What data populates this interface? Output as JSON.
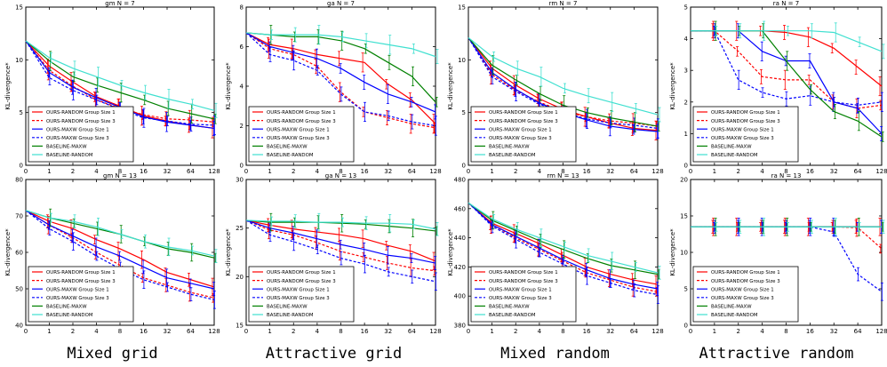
{
  "figure": {
    "captions": [
      "Mixed grid",
      "Attractive grid",
      "Mixed random",
      "Attractive random"
    ]
  },
  "chart_data": [
    {
      "type": "line",
      "title": "gm N = 7",
      "xlabel": "",
      "ylabel": "KL-divergence*",
      "x": [
        0,
        1,
        2,
        4,
        8,
        16,
        32,
        64,
        128
      ],
      "ylim": [
        0,
        15
      ],
      "yticks": [
        0,
        5,
        10,
        15
      ],
      "legend": "lower-left",
      "series": [
        {
          "name": "OURS-RANDOM Group Size 1",
          "color": "#ff0000",
          "dash": false,
          "values": [
            11.8,
            9.4,
            7.9,
            6.5,
            5.6,
            4.7,
            4.2,
            3.8,
            3.5
          ]
        },
        {
          "name": "OURS-RANDOM Group Size 3",
          "color": "#ff0000",
          "dash": true,
          "values": [
            11.8,
            9.0,
            7.5,
            6.2,
            5.4,
            4.8,
            4.4,
            4.3,
            4.1
          ]
        },
        {
          "name": "OURS-MAXW Group Size 1",
          "color": "#0000ff",
          "dash": false,
          "values": [
            11.8,
            8.8,
            7.4,
            6.4,
            5.5,
            4.6,
            4.1,
            3.8,
            3.5
          ]
        },
        {
          "name": "OURS-MAXW Group Size 3",
          "color": "#0000ff",
          "dash": true,
          "values": [
            11.8,
            8.3,
            7.1,
            6.2,
            5.3,
            4.5,
            4.2,
            3.9,
            3.8
          ]
        },
        {
          "name": "BASELINE-MAXW",
          "color": "#008000",
          "dash": false,
          "values": [
            11.8,
            9.9,
            8.4,
            7.6,
            6.9,
            6.2,
            5.4,
            4.9,
            4.4
          ]
        },
        {
          "name": "BASELINE-RANDOM",
          "color": "#40e0d0",
          "dash": false,
          "values": [
            11.8,
            10.2,
            9.2,
            8.4,
            7.6,
            6.9,
            6.3,
            5.8,
            5.2
          ]
        }
      ]
    },
    {
      "type": "line",
      "title": "ga N = 7",
      "xlabel": "",
      "ylabel": "KL-divergence*",
      "x": [
        0,
        1,
        2,
        4,
        8,
        16,
        32,
        64,
        128
      ],
      "ylim": [
        0,
        8
      ],
      "yticks": [
        0,
        2,
        4,
        6,
        8
      ],
      "legend": "lower-left",
      "series": [
        {
          "name": "OURS-RANDOM Group Size 1",
          "color": "#ff0000",
          "dash": false,
          "values": [
            6.7,
            6.1,
            5.9,
            5.6,
            5.4,
            5.2,
            4.1,
            3.3,
            2.1
          ]
        },
        {
          "name": "OURS-RANDOM Group Size 3",
          "color": "#ff0000",
          "dash": true,
          "values": [
            6.7,
            5.9,
            5.6,
            5.0,
            3.7,
            2.7,
            2.4,
            2.1,
            1.9
          ]
        },
        {
          "name": "OURS-MAXW Group Size 1",
          "color": "#0000ff",
          "dash": false,
          "values": [
            6.7,
            6.0,
            5.7,
            5.4,
            4.9,
            4.2,
            3.6,
            3.2,
            2.7
          ]
        },
        {
          "name": "OURS-MAXW Group Size 3",
          "color": "#0000ff",
          "dash": true,
          "values": [
            6.7,
            5.6,
            5.3,
            4.8,
            3.6,
            2.7,
            2.5,
            2.2,
            2.0
          ]
        },
        {
          "name": "BASELINE-MAXW",
          "color": "#008000",
          "dash": false,
          "values": [
            6.7,
            6.6,
            6.5,
            6.5,
            6.3,
            5.9,
            5.2,
            4.5,
            3.2
          ]
        },
        {
          "name": "BASELINE-RANDOM",
          "color": "#40e0d0",
          "dash": false,
          "values": [
            6.7,
            6.6,
            6.6,
            6.6,
            6.5,
            6.3,
            6.1,
            5.9,
            5.5
          ]
        }
      ]
    },
    {
      "type": "line",
      "title": "rm N = 7",
      "xlabel": "",
      "ylabel": "KL-divergence*",
      "x": [
        0,
        1,
        2,
        4,
        8,
        16,
        32,
        64,
        128
      ],
      "ylim": [
        0,
        15
      ],
      "yticks": [
        0,
        5,
        10,
        15
      ],
      "legend": "lower-left",
      "series": [
        {
          "name": "OURS-RANDOM Group Size 1",
          "color": "#ff0000",
          "dash": false,
          "values": [
            12.1,
            9.2,
            7.6,
            6.3,
            5.3,
            4.6,
            4.0,
            3.5,
            3.3
          ]
        },
        {
          "name": "OURS-RANDOM Group Size 3",
          "color": "#ff0000",
          "dash": true,
          "values": [
            12.1,
            8.6,
            7.1,
            6.0,
            5.1,
            4.6,
            4.2,
            4.0,
            3.7
          ]
        },
        {
          "name": "OURS-MAXW Group Size 1",
          "color": "#0000ff",
          "dash": false,
          "values": [
            12.1,
            8.8,
            7.2,
            5.9,
            5.0,
            4.3,
            3.7,
            3.4,
            3.2
          ]
        },
        {
          "name": "OURS-MAXW Group Size 3",
          "color": "#0000ff",
          "dash": true,
          "values": [
            12.1,
            8.4,
            7.0,
            5.8,
            5.0,
            4.4,
            4.0,
            3.8,
            3.5
          ]
        },
        {
          "name": "BASELINE-MAXW",
          "color": "#008000",
          "dash": false,
          "values": [
            12.1,
            9.5,
            8.1,
            6.8,
            5.7,
            5.0,
            4.5,
            4.1,
            3.7
          ]
        },
        {
          "name": "BASELINE-RANDOM",
          "color": "#40e0d0",
          "dash": false,
          "values": [
            12.1,
            10.3,
            9.2,
            8.4,
            7.3,
            6.6,
            6.0,
            5.4,
            4.8
          ]
        }
      ]
    },
    {
      "type": "line",
      "title": "ra N = 7",
      "xlabel": "",
      "ylabel": "KL-divergence*",
      "x": [
        0,
        1,
        2,
        4,
        8,
        16,
        32,
        64,
        128
      ],
      "ylim": [
        0,
        5
      ],
      "yticks": [
        0,
        1,
        2,
        3,
        4,
        5
      ],
      "legend": "lower-left",
      "series": [
        {
          "name": "OURS-RANDOM Group Size 1",
          "color": "#ff0000",
          "dash": false,
          "values": [
            4.25,
            4.25,
            4.25,
            4.25,
            4.2,
            4.05,
            3.7,
            3.1,
            2.5
          ]
        },
        {
          "name": "OURS-RANDOM Group Size 3",
          "color": "#ff0000",
          "dash": true,
          "values": [
            4.25,
            4.25,
            3.6,
            2.8,
            2.7,
            2.7,
            2.0,
            1.8,
            1.9
          ]
        },
        {
          "name": "OURS-MAXW Group Size 1",
          "color": "#0000ff",
          "dash": false,
          "values": [
            4.25,
            4.25,
            4.25,
            3.6,
            3.3,
            3.3,
            2.0,
            1.8,
            1.0
          ]
        },
        {
          "name": "OURS-MAXW Group Size 3",
          "color": "#0000ff",
          "dash": true,
          "values": [
            4.25,
            4.25,
            2.7,
            2.3,
            2.1,
            2.2,
            2.0,
            1.9,
            2.0
          ]
        },
        {
          "name": "BASELINE-MAXW",
          "color": "#008000",
          "dash": false,
          "values": [
            4.25,
            4.25,
            4.25,
            4.25,
            3.3,
            2.4,
            1.7,
            1.4,
            0.9
          ]
        },
        {
          "name": "BASELINE-RANDOM",
          "color": "#40e0d0",
          "dash": false,
          "values": [
            4.25,
            4.25,
            4.25,
            4.25,
            4.25,
            4.25,
            4.2,
            3.9,
            3.6
          ]
        }
      ]
    },
    {
      "type": "line",
      "title": "gm N = 13",
      "xlabel": "",
      "ylabel": "KL-divergence*",
      "x": [
        0,
        1,
        2,
        4,
        8,
        16,
        32,
        64,
        128
      ],
      "ylim": [
        40,
        80
      ],
      "yticks": [
        40,
        50,
        60,
        70,
        80
      ],
      "legend": "lower-left",
      "series": [
        {
          "name": "OURS-RANDOM Group Size 1",
          "color": "#ff0000",
          "dash": false,
          "values": [
            71.5,
            68.5,
            66.5,
            63.5,
            61.0,
            58.0,
            54.5,
            52.5,
            50.5
          ]
        },
        {
          "name": "OURS-RANDOM Group Size 3",
          "color": "#ff0000",
          "dash": true,
          "values": [
            71.5,
            67.5,
            64.0,
            60.0,
            56.5,
            53.0,
            51.0,
            49.0,
            47.5
          ]
        },
        {
          "name": "OURS-MAXW Group Size 1",
          "color": "#0000ff",
          "dash": false,
          "values": [
            71.5,
            67.5,
            64.5,
            61.5,
            59.0,
            56.0,
            53.0,
            51.5,
            50.0
          ]
        },
        {
          "name": "OURS-MAXW Group Size 3",
          "color": "#0000ff",
          "dash": true,
          "values": [
            71.5,
            66.5,
            63.0,
            59.0,
            55.5,
            52.5,
            50.5,
            48.5,
            47.0
          ]
        },
        {
          "name": "BASELINE-MAXW",
          "color": "#008000",
          "dash": false,
          "values": [
            71.5,
            69.5,
            68.0,
            66.5,
            65.0,
            63.0,
            61.0,
            60.0,
            58.5
          ]
        },
        {
          "name": "BASELINE-RANDOM",
          "color": "#40e0d0",
          "dash": false,
          "values": [
            71.5,
            69.5,
            68.5,
            67.0,
            65.0,
            63.0,
            61.5,
            60.5,
            59.0
          ]
        }
      ]
    },
    {
      "type": "line",
      "title": "ga N = 13",
      "xlabel": "",
      "ylabel": "KL-divergence*",
      "x": [
        0,
        1,
        2,
        4,
        8,
        16,
        32,
        64,
        128
      ],
      "ylim": [
        15,
        30
      ],
      "yticks": [
        15,
        20,
        25,
        30
      ],
      "legend": "lower-left",
      "series": [
        {
          "name": "OURS-RANDOM Group Size 1",
          "color": "#ff0000",
          "dash": false,
          "values": [
            25.8,
            25.3,
            24.9,
            24.6,
            24.3,
            23.9,
            23.2,
            22.6,
            21.6
          ]
        },
        {
          "name": "OURS-RANDOM Group Size 3",
          "color": "#ff0000",
          "dash": true,
          "values": [
            25.8,
            24.8,
            24.3,
            23.5,
            22.6,
            22.0,
            21.4,
            20.9,
            20.6
          ]
        },
        {
          "name": "OURS-MAXW Group Size 1",
          "color": "#0000ff",
          "dash": false,
          "values": [
            25.8,
            25.0,
            24.5,
            23.9,
            23.3,
            22.8,
            22.2,
            21.9,
            21.4
          ]
        },
        {
          "name": "OURS-MAXW Group Size 3",
          "color": "#0000ff",
          "dash": true,
          "values": [
            25.8,
            24.3,
            23.6,
            22.8,
            21.9,
            21.3,
            20.5,
            20.0,
            19.5
          ]
        },
        {
          "name": "BASELINE-MAXW",
          "color": "#008000",
          "dash": false,
          "values": [
            25.8,
            25.6,
            25.6,
            25.6,
            25.5,
            25.4,
            25.2,
            25.0,
            24.7
          ]
        },
        {
          "name": "BASELINE-RANDOM",
          "color": "#40e0d0",
          "dash": false,
          "values": [
            25.8,
            25.7,
            25.7,
            25.6,
            25.6,
            25.5,
            25.5,
            25.4,
            24.9
          ]
        }
      ]
    },
    {
      "type": "line",
      "title": "rm N = 13",
      "xlabel": "",
      "ylabel": "KL-divergence*",
      "x": [
        0,
        1,
        2,
        4,
        8,
        16,
        32,
        64,
        128
      ],
      "ylim": [
        380,
        480
      ],
      "yticks": [
        380,
        400,
        420,
        440,
        460,
        480
      ],
      "legend": "lower-left",
      "series": [
        {
          "name": "OURS-RANDOM Group Size 1",
          "color": "#ff0000",
          "dash": false,
          "values": [
            464,
            450,
            443,
            436,
            428,
            420,
            415,
            411,
            408
          ]
        },
        {
          "name": "OURS-RANDOM Group Size 3",
          "color": "#ff0000",
          "dash": true,
          "values": [
            464,
            449,
            440,
            432,
            424,
            416,
            411,
            406,
            403
          ]
        },
        {
          "name": "OURS-MAXW Group Size 1",
          "color": "#0000ff",
          "dash": false,
          "values": [
            464,
            449,
            441,
            433,
            425,
            418,
            412,
            408,
            405
          ]
        },
        {
          "name": "OURS-MAXW Group Size 3",
          "color": "#0000ff",
          "dash": true,
          "values": [
            464,
            448,
            439,
            430,
            422,
            414,
            409,
            404,
            401
          ]
        },
        {
          "name": "BASELINE-MAXW",
          "color": "#008000",
          "dash": false,
          "values": [
            464,
            452,
            445,
            438,
            432,
            426,
            421,
            418,
            415
          ]
        },
        {
          "name": "BASELINE-RANDOM",
          "color": "#40e0d0",
          "dash": false,
          "values": [
            464,
            453,
            446,
            440,
            434,
            428,
            424,
            420,
            416
          ]
        }
      ]
    },
    {
      "type": "line",
      "title": "ra N = 13",
      "xlabel": "",
      "ylabel": "KL-divergence*",
      "x": [
        0,
        1,
        2,
        4,
        8,
        16,
        32,
        64,
        128
      ],
      "ylim": [
        0,
        20
      ],
      "yticks": [
        0,
        5,
        10,
        15,
        20
      ],
      "legend": "lower-left",
      "series": [
        {
          "name": "OURS-RANDOM Group Size 1",
          "color": "#ff0000",
          "dash": false,
          "values": [
            13.5,
            13.5,
            13.5,
            13.5,
            13.5,
            13.5,
            13.5,
            13.5,
            13.5
          ]
        },
        {
          "name": "OURS-RANDOM Group Size 3",
          "color": "#ff0000",
          "dash": true,
          "values": [
            13.5,
            13.5,
            13.5,
            13.5,
            13.5,
            13.5,
            13.5,
            13.4,
            10.5
          ]
        },
        {
          "name": "OURS-MAXW Group Size 1",
          "color": "#0000ff",
          "dash": false,
          "values": [
            13.5,
            13.5,
            13.5,
            13.5,
            13.5,
            13.5,
            13.5,
            13.5,
            13.5
          ]
        },
        {
          "name": "OURS-MAXW Group Size 3",
          "color": "#0000ff",
          "dash": true,
          "values": [
            13.5,
            13.5,
            13.5,
            13.5,
            13.5,
            13.5,
            12.8,
            7.0,
            4.6
          ]
        },
        {
          "name": "BASELINE-MAXW",
          "color": "#008000",
          "dash": false,
          "values": [
            13.5,
            13.5,
            13.5,
            13.5,
            13.5,
            13.5,
            13.5,
            13.5,
            13.5
          ]
        },
        {
          "name": "BASELINE-RANDOM",
          "color": "#40e0d0",
          "dash": false,
          "values": [
            13.5,
            13.5,
            13.5,
            13.5,
            13.5,
            13.5,
            13.5,
            13.5,
            13.5
          ]
        }
      ]
    }
  ]
}
